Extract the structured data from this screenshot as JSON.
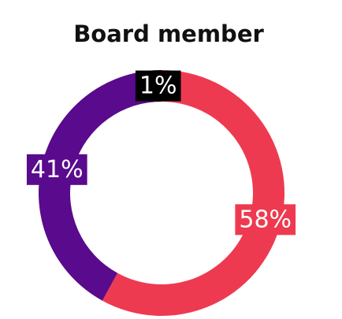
{
  "chart_data": {
    "type": "pie",
    "title": "Board member",
    "values": [
      58,
      41,
      1
    ],
    "value_labels": [
      "58%",
      "41%",
      "1%"
    ],
    "colors": [
      "#ee3a50",
      "#5a0a8c",
      "#000000"
    ]
  }
}
